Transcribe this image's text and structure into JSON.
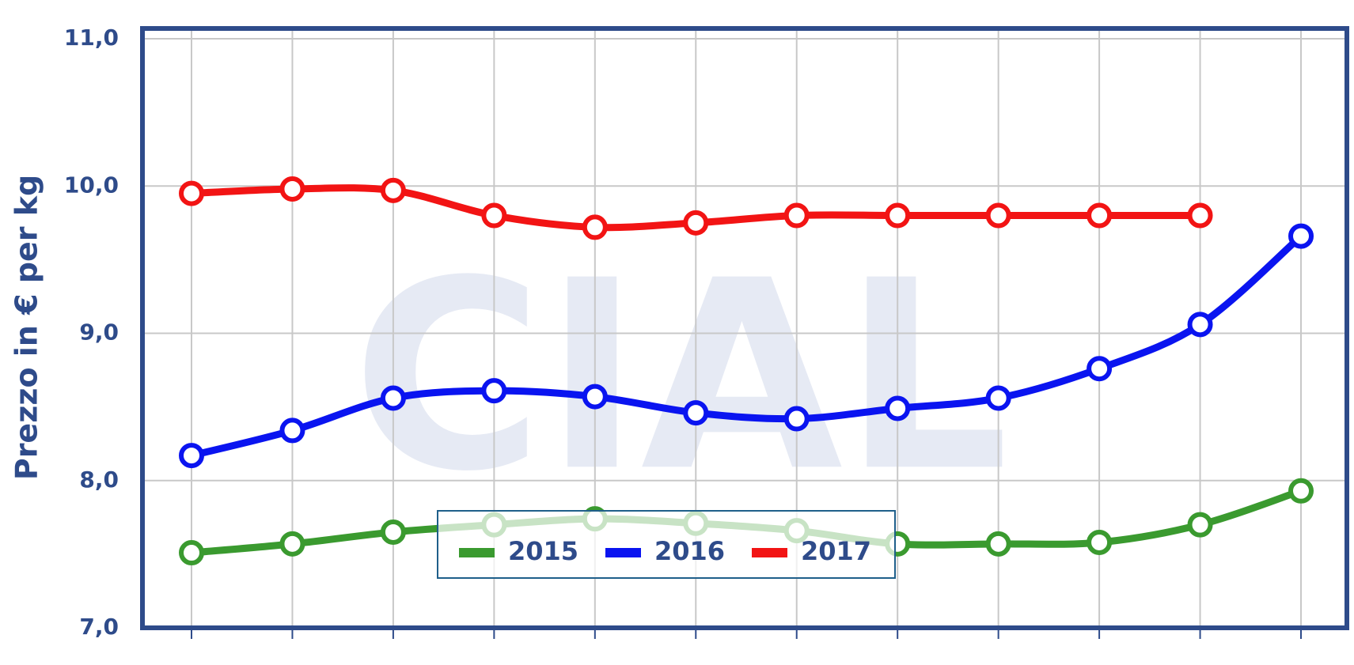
{
  "chart_data": {
    "type": "line",
    "y_axis_label": "Prezzo in € per kg",
    "watermark": "CIAL",
    "categories": [
      null,
      null,
      null,
      null,
      null,
      null,
      null,
      null,
      null,
      null,
      null,
      null
    ],
    "series": [
      {
        "name": "2015",
        "color": "#3a9a2f",
        "values": [
          7.51,
          7.57,
          7.65,
          7.7,
          7.74,
          7.71,
          7.66,
          7.57,
          7.57,
          7.58,
          7.7,
          7.93
        ]
      },
      {
        "name": "2016",
        "color": "#0a14f0",
        "values": [
          8.17,
          8.34,
          8.56,
          8.61,
          8.57,
          8.46,
          8.42,
          8.49,
          8.56,
          8.76,
          9.06,
          9.66
        ]
      },
      {
        "name": "2017",
        "color": "#f21414",
        "values": [
          9.95,
          9.98,
          9.97,
          9.8,
          9.72,
          9.75,
          9.8,
          9.8,
          9.8,
          9.8,
          9.8,
          null
        ]
      }
    ],
    "ylim": [
      7,
      11
    ],
    "yticks": [
      {
        "value": 7,
        "label": "7,0"
      },
      {
        "value": 8,
        "label": "8,0"
      },
      {
        "value": 9,
        "label": "9,0"
      },
      {
        "value": 10,
        "label": "10,0"
      },
      {
        "value": 11,
        "label": "11,0"
      }
    ],
    "grid": true,
    "legend": "bottom"
  }
}
